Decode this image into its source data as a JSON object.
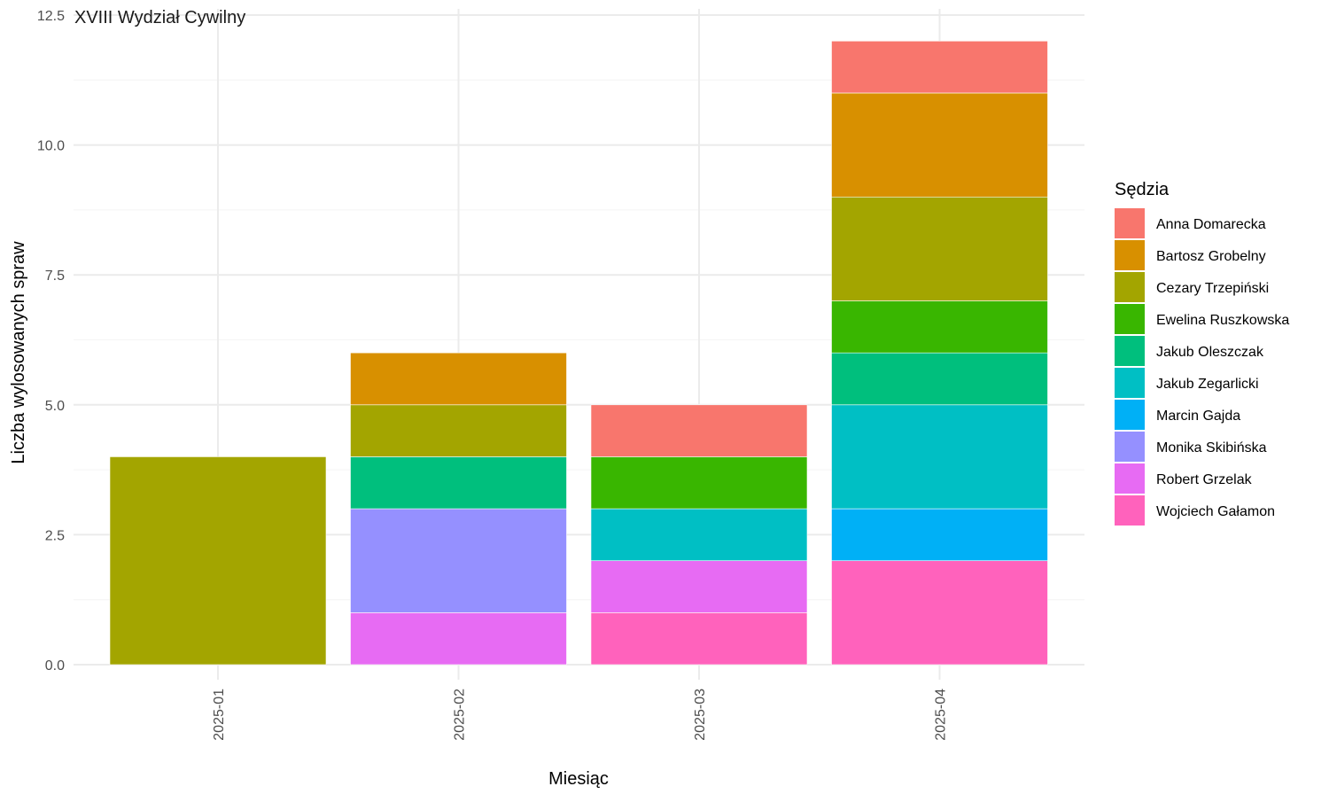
{
  "chart_data": {
    "type": "bar",
    "stacked": true,
    "title": "XVIII Wydział Cywilny",
    "xlabel": "Miesiąc",
    "ylabel": "Liczba wylosowanych spraw",
    "ylim": [
      0,
      12.5
    ],
    "yticks": [
      "0.0",
      "2.5",
      "5.0",
      "7.5",
      "10.0",
      "12.5"
    ],
    "ytick_values": [
      0,
      2.5,
      5,
      7.5,
      10,
      12.5
    ],
    "grid": true,
    "legend_title": "Sędzia",
    "legend_position": "right",
    "categories": [
      "2025-01",
      "2025-02",
      "2025-03",
      "2025-04"
    ],
    "series": [
      {
        "name": "Anna Domarecka",
        "color": "#F8766D",
        "values": [
          0,
          0,
          1,
          1
        ]
      },
      {
        "name": "Bartosz Grobelny",
        "color": "#D89000",
        "values": [
          0,
          1,
          0,
          2
        ]
      },
      {
        "name": "Cezary Trzepiński",
        "color": "#A3A500",
        "values": [
          4,
          1,
          0,
          2
        ]
      },
      {
        "name": "Ewelina Ruszkowska",
        "color": "#39B600",
        "values": [
          0,
          0,
          1,
          1
        ]
      },
      {
        "name": "Jakub Oleszczak",
        "color": "#00BF7D",
        "values": [
          0,
          1,
          0,
          1
        ]
      },
      {
        "name": "Jakub Zegarlicki",
        "color": "#00BFC4",
        "values": [
          0,
          0,
          1,
          2
        ]
      },
      {
        "name": "Marcin Gajda",
        "color": "#00B0F6",
        "values": [
          0,
          0,
          0,
          1
        ]
      },
      {
        "name": "Monika Skibińska",
        "color": "#9590FF",
        "values": [
          0,
          2,
          0,
          0
        ]
      },
      {
        "name": "Robert Grzelak",
        "color": "#E76BF3",
        "values": [
          0,
          1,
          1,
          0
        ]
      },
      {
        "name": "Wojciech Gałamon",
        "color": "#FF62BC",
        "values": [
          0,
          0,
          1,
          2
        ]
      }
    ]
  }
}
